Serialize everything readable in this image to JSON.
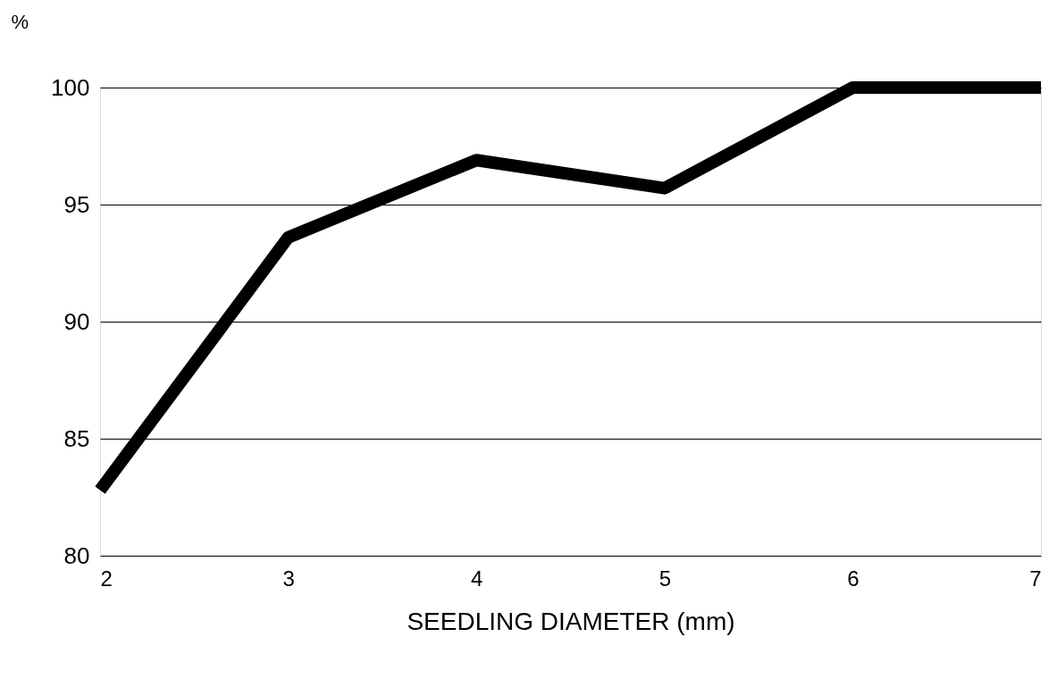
{
  "chart_data": {
    "type": "line",
    "xlabel": "SEEDLING DIAMETER (mm)",
    "ylabel": "%",
    "x": [
      2,
      3,
      4,
      5,
      6,
      7
    ],
    "series": [
      {
        "color": "#000000",
        "values": [
          82.8,
          93.6,
          96.9,
          95.7,
          100,
          100
        ]
      }
    ],
    "xlim": [
      2,
      7
    ],
    "xticks": [
      2,
      3,
      4,
      5,
      6,
      7
    ],
    "ylim": [
      80,
      100
    ],
    "yticks": [
      80,
      85,
      90,
      95,
      100
    ],
    "grid": "y",
    "marker": "none",
    "line_style": "solid"
  }
}
